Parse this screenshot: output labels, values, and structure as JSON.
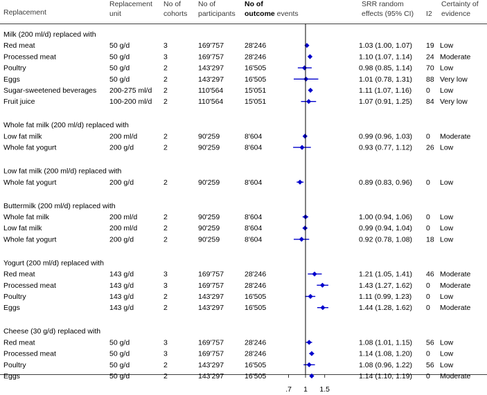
{
  "chart_data": {
    "type": "forest",
    "headers": {
      "replacement": "Replacement",
      "unit": "Replacement unit",
      "cohorts": "No of cohorts",
      "participants": "No of participants",
      "events": "No of outcome events",
      "effect": "SRR random effects (95% CI)",
      "i2": "I2",
      "certainty": "Certainty of evidence"
    },
    "x_ticks": [
      ".7",
      "1",
      "1.5"
    ],
    "x_tick_values": [
      0.7,
      1,
      1.5
    ],
    "xlim": [
      0.54,
      1.6
    ],
    "x_scale": "log",
    "reference_line": 1,
    "marker_color": "#0000cc",
    "groups": [
      {
        "title": "Milk (200 ml/d) replaced with",
        "rows": [
          {
            "label": "Red meat",
            "unit": "50 g/d",
            "cohorts": "3",
            "participants": "169'757",
            "events": "28'246",
            "est": 1.03,
            "lo": 1.0,
            "hi": 1.07,
            "ci_text": "1.03 (1.00, 1.07)",
            "i2": "19",
            "certainty": "Low"
          },
          {
            "label": "Processed meat",
            "unit": "50 g/d",
            "cohorts": "3",
            "participants": "169'757",
            "events": "28'246",
            "est": 1.1,
            "lo": 1.07,
            "hi": 1.14,
            "ci_text": "1.10 (1.07, 1.14)",
            "i2": "24",
            "certainty": "Moderate"
          },
          {
            "label": "Poultry",
            "unit": "50 g/d",
            "cohorts": "2",
            "participants": "143'297",
            "events": "16'505",
            "est": 0.98,
            "lo": 0.85,
            "hi": 1.14,
            "ci_text": "0.98 (0.85, 1.14)",
            "i2": "70",
            "certainty": "Low"
          },
          {
            "label": "Eggs",
            "unit": "50 g/d",
            "cohorts": "2",
            "participants": "143'297",
            "events": "16'505",
            "est": 1.01,
            "lo": 0.78,
            "hi": 1.31,
            "ci_text": "1.01 (0.78, 1.31)",
            "i2": "88",
            "certainty": "Very low"
          },
          {
            "label": "Sugar-sweetened beverages",
            "unit": "200-275 ml/d",
            "cohorts": "2",
            "participants": "110'564",
            "events": "15'051",
            "est": 1.11,
            "lo": 1.07,
            "hi": 1.16,
            "ci_text": "1.11 (1.07, 1.16)",
            "i2": "0",
            "certainty": "Low"
          },
          {
            "label": "Fruit juice",
            "unit": "100-200 ml/d",
            "cohorts": "2",
            "participants": "110'564",
            "events": "15'051",
            "est": 1.07,
            "lo": 0.91,
            "hi": 1.25,
            "ci_text": "1.07 (0.91, 1.25)",
            "i2": "84",
            "certainty": "Very low"
          }
        ]
      },
      {
        "title": "Whole fat milk (200 ml/d) replaced with",
        "rows": [
          {
            "label": "Low fat milk",
            "unit": "200 ml/d",
            "cohorts": "2",
            "participants": "90'259",
            "events": "8'604",
            "est": 0.99,
            "lo": 0.96,
            "hi": 1.03,
            "ci_text": "0.99 (0.96, 1.03)",
            "i2": "0",
            "certainty": "Moderate"
          },
          {
            "label": "Whole fat yogurt",
            "unit": "200 g/d",
            "cohorts": "2",
            "participants": "90'259",
            "events": "8'604",
            "est": 0.93,
            "lo": 0.77,
            "hi": 1.12,
            "ci_text": "0.93 (0.77, 1.12)",
            "i2": "26",
            "certainty": "Low"
          }
        ]
      },
      {
        "title": "Low fat milk (200 ml/d) replaced with",
        "rows": [
          {
            "label": "Whole fat yogurt",
            "unit": "200 g/d",
            "cohorts": "2",
            "participants": "90'259",
            "events": "8'604",
            "est": 0.89,
            "lo": 0.83,
            "hi": 0.96,
            "ci_text": "0.89 (0.83, 0.96)",
            "i2": "0",
            "certainty": "Low"
          }
        ]
      },
      {
        "title": "Buttermilk (200 ml/d) replaced with",
        "rows": [
          {
            "label": "Whole fat milk",
            "unit": "200 ml/d",
            "cohorts": "2",
            "participants": "90'259",
            "events": "8'604",
            "est": 1.0,
            "lo": 0.94,
            "hi": 1.06,
            "ci_text": "1.00 (0.94, 1.06)",
            "i2": "0",
            "certainty": "Low"
          },
          {
            "label": "Low fat milk",
            "unit": "200 ml/d",
            "cohorts": "2",
            "participants": "90'259",
            "events": "8'604",
            "est": 0.99,
            "lo": 0.94,
            "hi": 1.04,
            "ci_text": "0.99 (0.94, 1.04)",
            "i2": "0",
            "certainty": "Low"
          },
          {
            "label": "Whole fat yogurt",
            "unit": "200 g/d",
            "cohorts": "2",
            "participants": "90'259",
            "events": "8'604",
            "est": 0.92,
            "lo": 0.78,
            "hi": 1.08,
            "ci_text": "0.92 (0.78, 1.08)",
            "i2": "18",
            "certainty": "Low"
          }
        ]
      },
      {
        "title": "Yogurt (200 ml/d) replaced with",
        "rows": [
          {
            "label": "Red meat",
            "unit": "143 g/d",
            "cohorts": "3",
            "participants": "169'757",
            "events": "28'246",
            "est": 1.21,
            "lo": 1.05,
            "hi": 1.41,
            "ci_text": "1.21 (1.05, 1.41)",
            "i2": "46",
            "certainty": "Moderate"
          },
          {
            "label": "Processed meat",
            "unit": "143 g/d",
            "cohorts": "3",
            "participants": "169'757",
            "events": "28'246",
            "est": 1.43,
            "lo": 1.27,
            "hi": 1.62,
            "ci_text": "1.43 (1.27, 1.62)",
            "i2": "0",
            "certainty": "Moderate"
          },
          {
            "label": "Poultry",
            "unit": "143 g/d",
            "cohorts": "2",
            "participants": "143'297",
            "events": "16'505",
            "est": 1.11,
            "lo": 0.99,
            "hi": 1.23,
            "ci_text": "1.11 (0.99, 1.23)",
            "i2": "0",
            "certainty": "Low"
          },
          {
            "label": "Eggs",
            "unit": "143 g/d",
            "cohorts": "2",
            "participants": "143'297",
            "events": "16'505",
            "est": 1.44,
            "lo": 1.28,
            "hi": 1.62,
            "ci_text": "1.44 (1.28, 1.62)",
            "i2": "0",
            "certainty": "Moderate"
          }
        ]
      },
      {
        "title": "Cheese  (30 g/d)  replaced with",
        "rows": [
          {
            "label": "Red meat",
            "unit": "50 g/d",
            "cohorts": "3",
            "participants": "169'757",
            "events": "28'246",
            "est": 1.08,
            "lo": 1.01,
            "hi": 1.15,
            "ci_text": "1.08 (1.01, 1.15)",
            "i2": "56",
            "certainty": "Low"
          },
          {
            "label": "Processed meat",
            "unit": "50 g/d",
            "cohorts": "3",
            "participants": "169'757",
            "events": "28'246",
            "est": 1.14,
            "lo": 1.08,
            "hi": 1.2,
            "ci_text": "1.14 (1.08, 1.20)",
            "i2": "0",
            "certainty": "Low"
          },
          {
            "label": "Poultry",
            "unit": "50 g/d",
            "cohorts": "2",
            "participants": "143'297",
            "events": "16'505",
            "est": 1.08,
            "lo": 0.96,
            "hi": 1.22,
            "ci_text": "1.08 (0.96, 1.22)",
            "i2": "56",
            "certainty": "Low"
          },
          {
            "label": "Eggs",
            "unit": "50 g/d",
            "cohorts": "2",
            "participants": "143'297",
            "events": "16'505",
            "est": 1.14,
            "lo": 1.1,
            "hi": 1.19,
            "ci_text": "1.14 (1.10, 1.19)",
            "i2": "0",
            "certainty": "Moderate"
          }
        ]
      }
    ]
  }
}
